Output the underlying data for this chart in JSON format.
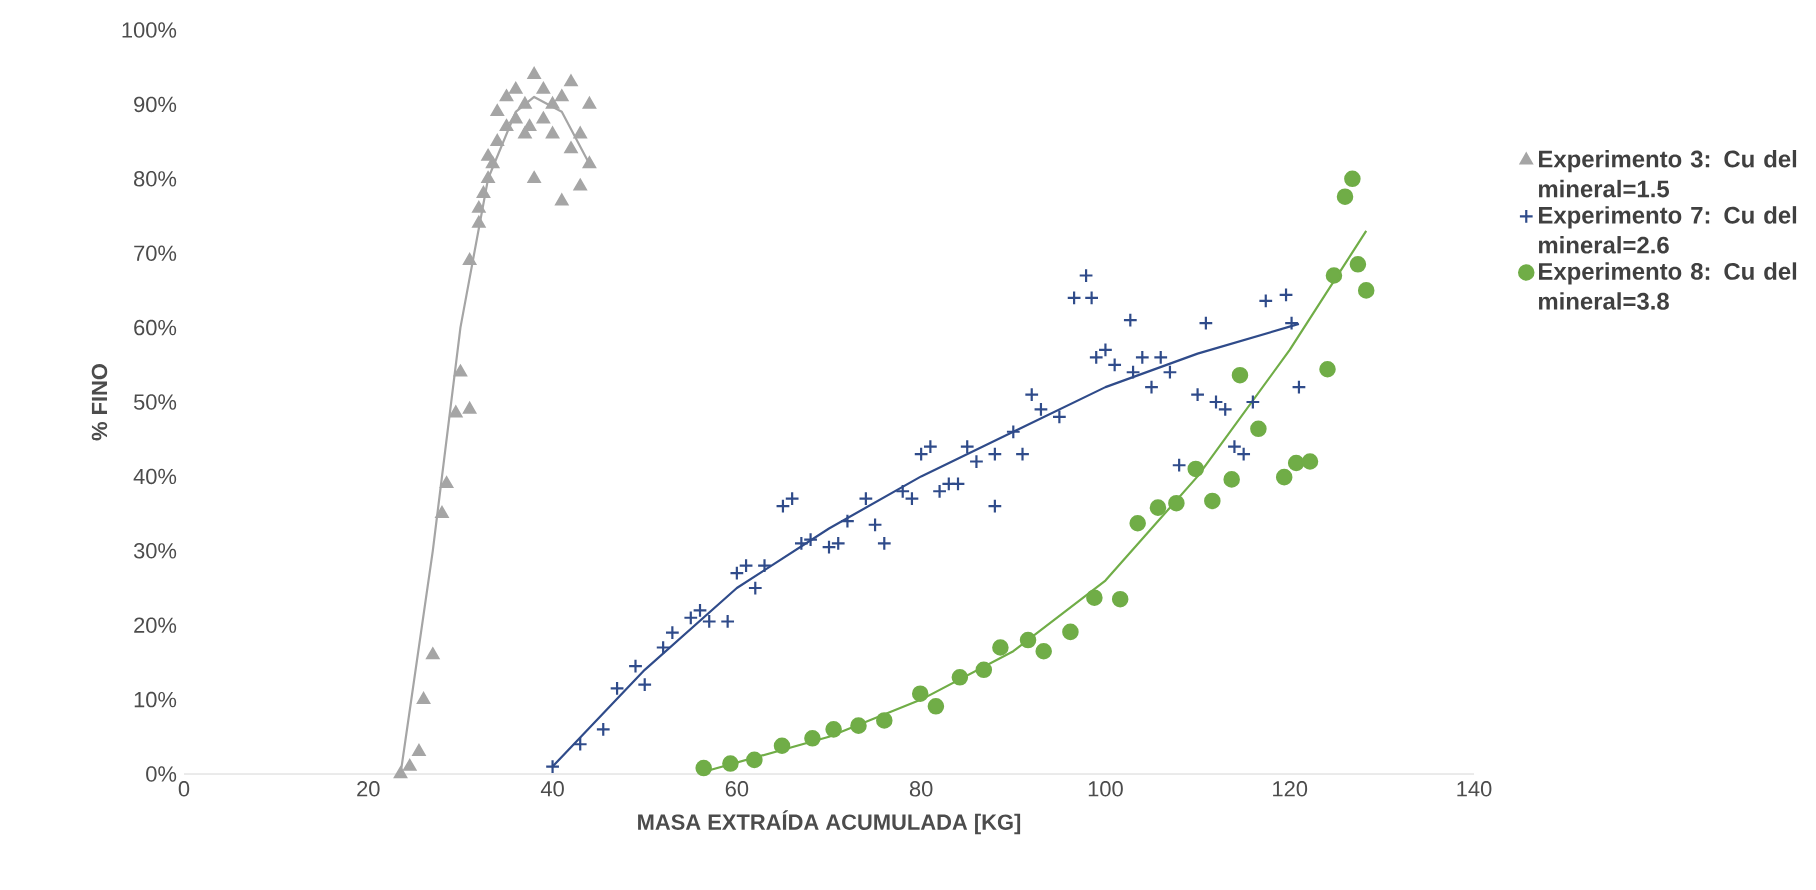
{
  "chart_data": {
    "type": "scatter",
    "xlabel": "MASA EXTRAÍDA ACUMULADA [KG]",
    "ylabel": "% FINO",
    "xlim": [
      0,
      140
    ],
    "xticks": [
      0,
      20,
      40,
      60,
      80,
      100,
      120,
      140
    ],
    "ylim": [
      0,
      100
    ],
    "yticks": [
      {
        "value": 0,
        "label": "0%"
      },
      {
        "value": 10,
        "label": "10%"
      },
      {
        "value": 20,
        "label": "20%"
      },
      {
        "value": 30,
        "label": "30%"
      },
      {
        "value": 40,
        "label": "40%"
      },
      {
        "value": 50,
        "label": "50%"
      },
      {
        "value": 60,
        "label": "60%"
      },
      {
        "value": 70,
        "label": "70%"
      },
      {
        "value": 80,
        "label": "80%"
      },
      {
        "value": 90,
        "label": "90%"
      },
      {
        "value": 100,
        "label": "100%"
      }
    ],
    "grid": false,
    "legend": "right",
    "series": [
      {
        "name": "Experimento 3: Cu del mineral=1.5",
        "color": "#a5a5a5",
        "marker": "triangle",
        "x": [
          23.5,
          24.5,
          25.5,
          26,
          27,
          28,
          28.5,
          29.5,
          30,
          31,
          31,
          32,
          32,
          32.5,
          33,
          33,
          33.5,
          34,
          34,
          35,
          35,
          36,
          36,
          37,
          37,
          37.5,
          38,
          38,
          39,
          39,
          40,
          40,
          41,
          41,
          42,
          42,
          43,
          43,
          44,
          44
        ],
        "values": [
          0,
          1,
          3,
          10,
          16,
          35,
          39,
          48.5,
          54,
          49,
          69,
          74,
          76,
          78,
          80,
          83,
          82,
          85,
          89,
          91,
          87,
          88,
          92,
          90,
          86,
          87,
          94,
          80,
          92,
          88,
          90,
          86,
          91,
          77,
          93,
          84,
          79,
          86,
          90,
          82
        ]
      },
      {
        "name": "Experimento 7: Cu del mineral=2.6",
        "color": "#2f4b8a",
        "marker": "cross",
        "x": [
          40,
          43,
          45.5,
          47,
          49,
          50,
          52,
          53,
          55,
          56,
          57,
          59,
          60,
          61,
          62,
          63,
          65,
          66,
          67,
          68,
          70,
          71,
          72,
          74,
          75,
          76,
          78,
          79,
          80,
          81,
          82,
          83,
          84,
          85,
          86,
          88,
          88,
          90,
          91,
          92,
          93,
          95,
          96.6,
          97.9,
          98.5,
          99,
          100,
          101,
          102.7,
          103,
          104,
          105,
          106,
          107,
          108,
          110,
          110.9,
          112,
          113,
          114,
          115,
          116,
          117.4,
          119.6,
          120.2,
          121
        ],
        "values": [
          1,
          4,
          6,
          11.5,
          14.5,
          12,
          17,
          19,
          21,
          22,
          20.5,
          20.5,
          27,
          28,
          25,
          28,
          36,
          37,
          31,
          31.5,
          30.5,
          31,
          34,
          37,
          33.5,
          31,
          38,
          37,
          43,
          44,
          38,
          39,
          39,
          44,
          42,
          43,
          36,
          46,
          43,
          51,
          49,
          48,
          64,
          67,
          64,
          56,
          57,
          55,
          61,
          54,
          56,
          52,
          56,
          54,
          41.5,
          51,
          60.6,
          50,
          49,
          44,
          43,
          50,
          63.6,
          64.4,
          60.6,
          52
        ]
      },
      {
        "name": "Experimento 8: Cu del mineral=3.8",
        "color": "#70ad47",
        "marker": "circle",
        "x": [
          56.4,
          59.3,
          61.9,
          64.9,
          68.2,
          70.5,
          73.2,
          76,
          79.9,
          81.6,
          84.2,
          86.8,
          88.6,
          91.6,
          93.3,
          96.2,
          98.8,
          101.6,
          103.5,
          105.7,
          107.7,
          109.8,
          111.6,
          113.7,
          114.6,
          116.6,
          119.4,
          120.7,
          122.2,
          124.1,
          124.8,
          126,
          126.8,
          127.4,
          128.3
        ],
        "values": [
          0.8,
          1.4,
          1.9,
          3.8,
          4.8,
          6,
          6.5,
          7.2,
          10.8,
          9.1,
          13,
          14,
          17,
          18,
          16.5,
          19.1,
          23.7,
          23.5,
          33.7,
          35.8,
          36.4,
          41,
          36.7,
          39.6,
          53.6,
          46.4,
          39.9,
          41.8,
          42,
          54.4,
          67,
          77.6,
          80,
          68.5,
          65
        ]
      },
      {
        "type": "line",
        "color": "#a5a5a5",
        "x": [
          23.5,
          27,
          30,
          33,
          36,
          38,
          41,
          44
        ],
        "values": [
          0,
          30,
          60,
          80,
          89,
          91,
          89,
          82
        ]
      },
      {
        "type": "line",
        "color": "#2f4b8a",
        "x": [
          40,
          50,
          60,
          70,
          80,
          90,
          100,
          110,
          121
        ],
        "values": [
          1,
          14,
          25,
          33,
          40,
          46,
          52,
          56.5,
          60.5
        ]
      },
      {
        "type": "line",
        "color": "#70ad47",
        "x": [
          57,
          70,
          80,
          90,
          100,
          110,
          120,
          128.3
        ],
        "values": [
          0.5,
          5,
          10,
          16.5,
          26,
          40,
          57,
          73
        ]
      }
    ]
  }
}
